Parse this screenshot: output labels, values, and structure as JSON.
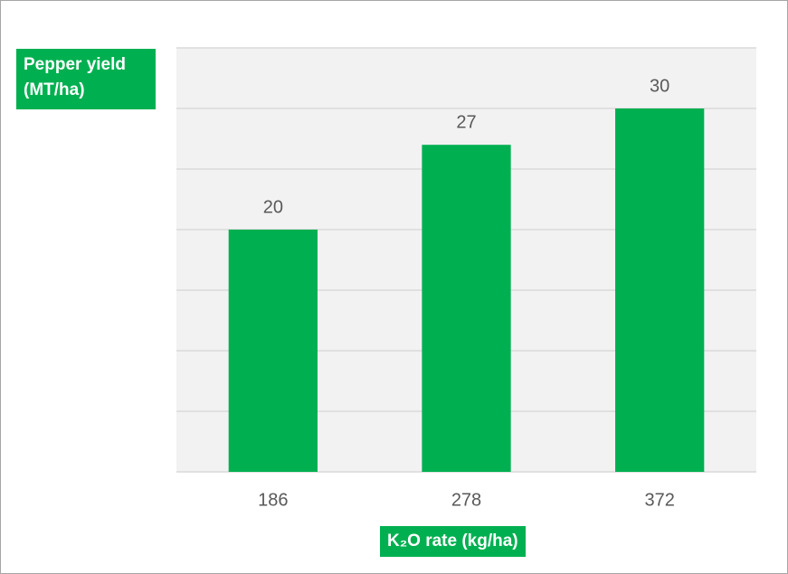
{
  "chart_data": {
    "type": "bar",
    "y_axis_label": "Pepper yield (MT/ha)",
    "x_axis_label": "K₂O rate (kg/ha)",
    "categories": [
      "186",
      "278",
      "372"
    ],
    "values": [
      20,
      27,
      30
    ],
    "color": "#00b050",
    "ylim": [
      0,
      35
    ],
    "yticks": [
      0,
      5,
      10,
      15,
      20,
      25,
      30,
      35
    ],
    "grid": true
  }
}
